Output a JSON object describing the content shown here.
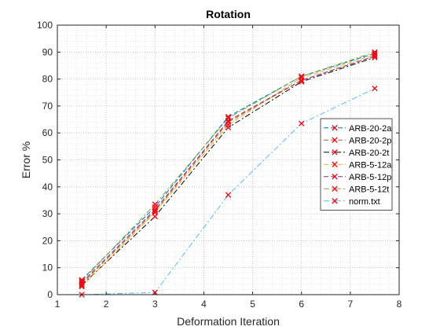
{
  "chart_data": {
    "type": "line",
    "title": "Rotation",
    "xlabel": "Deformation Iteration",
    "ylabel": "Error %",
    "xlim": [
      1,
      8
    ],
    "ylim": [
      0,
      100
    ],
    "xticks": [
      1,
      2,
      3,
      4,
      5,
      6,
      7,
      8
    ],
    "yticks": [
      0,
      10,
      20,
      30,
      40,
      50,
      60,
      70,
      80,
      90,
      100
    ],
    "grid": "major and minor, dotted",
    "legend_position": "right, middle",
    "marker": "x",
    "marker_color": "#e8101b",
    "x": [
      1.5,
      3,
      4.5,
      6,
      7.5
    ],
    "series": [
      {
        "name": "ARB-20-2a",
        "color": "#0072bd",
        "dash": "dashed",
        "values": [
          5.5,
          32.5,
          66.0,
          81.0,
          89.5
        ]
      },
      {
        "name": "ARB-20-2p",
        "color": "#d95319",
        "dash": "dashed",
        "values": [
          4.0,
          31.0,
          64.0,
          79.5,
          88.5
        ]
      },
      {
        "name": "ARB-20-2t",
        "color": "#000000",
        "dash": "dashdot",
        "values": [
          3.5,
          29.0,
          62.0,
          79.0,
          88.0
        ]
      },
      {
        "name": "ARB-5-12a",
        "color": "#edb120",
        "dash": "dashed",
        "values": [
          3.0,
          30.5,
          63.0,
          80.5,
          89.0
        ]
      },
      {
        "name": "ARB-5-12p",
        "color": "#7e2f8e",
        "dash": "dashed",
        "values": [
          4.5,
          31.5,
          64.5,
          79.5,
          88.5
        ]
      },
      {
        "name": "ARB-5-12t",
        "color": "#77ac30",
        "dash": "dashdot",
        "values": [
          5.0,
          33.5,
          65.5,
          81.0,
          90.0
        ]
      },
      {
        "name": "norm.txt",
        "color": "#4dbeee",
        "dash": "dashdot",
        "values": [
          0.0,
          0.8,
          37.0,
          63.5,
          76.5
        ]
      }
    ]
  }
}
